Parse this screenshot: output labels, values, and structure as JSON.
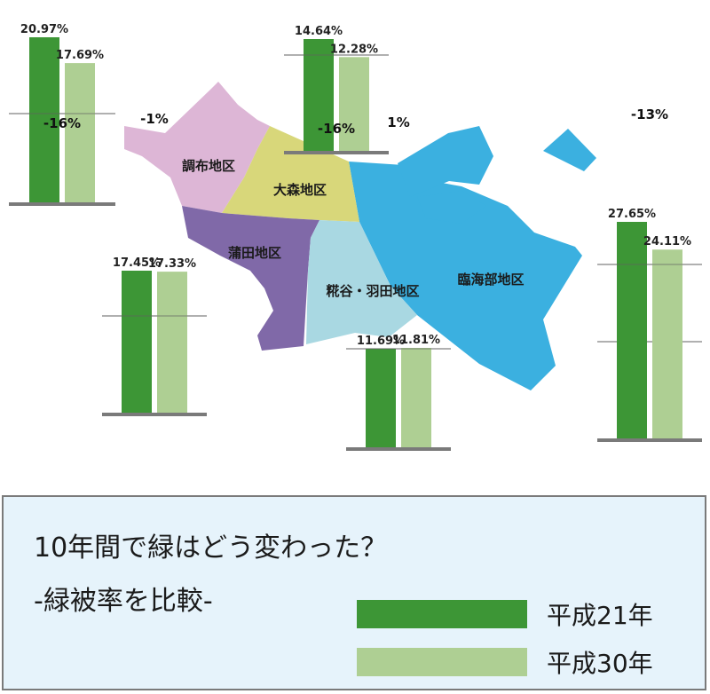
{
  "colors": {
    "h21": "#3d9636",
    "h30": "#aecf93",
    "baseline": "#7a7a7a",
    "refline": "#606060",
    "legend_bg": "#e6f3fb"
  },
  "map": {
    "regions": [
      {
        "name": "調布地区",
        "color": "#ddb6d6"
      },
      {
        "name": "大森地区",
        "color": "#d8d77a"
      },
      {
        "name": "蒲田地区",
        "color": "#8069a8"
      },
      {
        "name": "糀谷・羽田地区",
        "color": "#a9d8e2"
      },
      {
        "name": "臨海部地区",
        "color": "#3bb0e0"
      }
    ]
  },
  "chart_data": [
    {
      "type": "bar",
      "region": "調布地区",
      "categories": [
        "平成21年",
        "平成30年"
      ],
      "values": [
        20.97,
        17.69
      ],
      "value_labels": [
        "20.97%",
        "17.69%"
      ],
      "change_label": "-16%"
    },
    {
      "type": "bar",
      "region": "大森地区",
      "categories": [
        "平成21年",
        "平成30年"
      ],
      "values": [
        14.64,
        12.28
      ],
      "value_labels": [
        "14.64%",
        "12.28%"
      ],
      "change_label": "-16%"
    },
    {
      "type": "bar",
      "region": "蒲田地区",
      "categories": [
        "平成21年",
        "平成30年"
      ],
      "values": [
        17.45,
        17.33
      ],
      "value_labels": [
        "17.45%",
        "17.33%"
      ],
      "change_label": "-1%"
    },
    {
      "type": "bar",
      "region": "糀谷・羽田地区",
      "categories": [
        "平成21年",
        "平成30年"
      ],
      "values": [
        11.69,
        11.81
      ],
      "value_labels": [
        "11.69%",
        "11.81%"
      ],
      "change_label": "1%"
    },
    {
      "type": "bar",
      "region": "臨海部地区",
      "categories": [
        "平成21年",
        "平成30年"
      ],
      "values": [
        27.65,
        24.11
      ],
      "value_labels": [
        "27.65%",
        "24.11%"
      ],
      "change_label": "-13%"
    }
  ],
  "legend": {
    "title": "10年間で緑はどう変わった？",
    "subtitle": "-緑被率を比較-",
    "items": [
      {
        "label": "平成21年",
        "color": "#3d9636"
      },
      {
        "label": "平成30年",
        "color": "#aecf93"
      }
    ]
  }
}
